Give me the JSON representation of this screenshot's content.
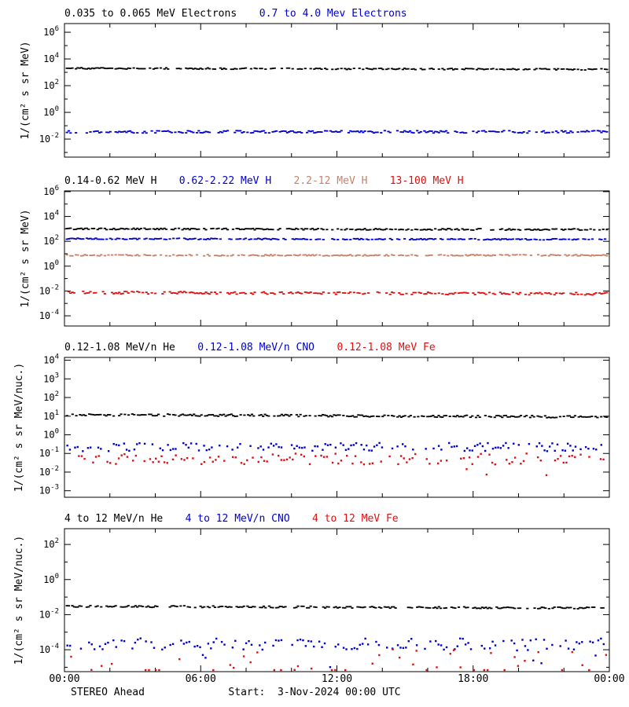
{
  "footer": {
    "left": "STEREO Ahead",
    "center": "Start:  3-Nov-2024 00:00 UTC"
  },
  "x_axis": {
    "range_hours": [
      0,
      24
    ],
    "tick_hours": [
      0,
      6,
      12,
      18,
      24
    ],
    "tick_labels": [
      "00:00",
      "06:00",
      "12:00",
      "18:00",
      "00:00"
    ],
    "minor_tick_step_hours": 2
  },
  "colors": {
    "black": "#000000",
    "blue": "#0000cc",
    "tan": "#c68168",
    "red": "#dd1111",
    "axis": "#000000",
    "background": "#ffffff"
  },
  "chart_data": [
    {
      "type": "scatter",
      "panel": "electrons",
      "titles": [
        {
          "text": "0.035 to 0.065 MeV Electrons",
          "color": "#000000"
        },
        {
          "text": "0.7 to 4.0 Mev Electrons",
          "color": "#0000cc"
        }
      ],
      "ylabel": "1/(cm² s sr MeV)",
      "ylog_range": [
        -3.35,
        6.65
      ],
      "ytick_exponents_labeled": [
        6,
        4,
        2,
        0,
        -2
      ],
      "ytick_labels": [
        "10^6",
        "10^4",
        "10^2",
        "10^0",
        "10^-2"
      ],
      "grid": false,
      "series": [
        {
          "name": "0.035 to 0.065 MeV Electrons",
          "color": "#000000",
          "level": 2000,
          "noise_dex": 0.05,
          "trend_dex": -0.08,
          "marker": "dash",
          "n": 300,
          "drop_fraction": 0.28,
          "seed": 11
        },
        {
          "name": "0.7 to 4.0 Mev Electrons",
          "color": "#0000cc",
          "level": 0.035,
          "noise_dex": 0.09,
          "trend_dex": 0.0,
          "marker": "dash",
          "n": 300,
          "drop_fraction": 0.3,
          "seed": 22
        }
      ]
    },
    {
      "type": "scatter",
      "panel": "protons",
      "titles": [
        {
          "text": "0.14-0.62 MeV H",
          "color": "#000000"
        },
        {
          "text": "0.62-2.22 MeV H",
          "color": "#0000cc"
        },
        {
          "text": "2.2-12 MeV H",
          "color": "#c68168"
        },
        {
          "text": "13-100 MeV H",
          "color": "#dd1111"
        }
      ],
      "ylabel": "1/(cm² s sr MeV)",
      "ylog_range": [
        -4.82,
        6.06
      ],
      "ytick_exponents_labeled": [
        6,
        4,
        2,
        0,
        -2,
        -4
      ],
      "ytick_labels": [
        "10^6",
        "10^4",
        "10^2",
        "10^0",
        "10^-2",
        "10^-4"
      ],
      "grid": false,
      "series": [
        {
          "name": "0.14-0.62 MeV H",
          "color": "#000000",
          "level": 1000,
          "noise_dex": 0.06,
          "trend_dex": -0.05,
          "marker": "dash",
          "n": 300,
          "drop_fraction": 0.28,
          "seed": 33
        },
        {
          "name": "0.62-2.22 MeV H",
          "color": "#0000cc",
          "level": 160,
          "noise_dex": 0.05,
          "trend_dex": -0.05,
          "marker": "dash",
          "n": 300,
          "drop_fraction": 0.3,
          "seed": 44
        },
        {
          "name": "2.2-12 MeV H",
          "color": "#c68168",
          "level": 7.5,
          "noise_dex": 0.05,
          "trend_dex": 0.0,
          "marker": "dash",
          "n": 300,
          "drop_fraction": 0.3,
          "seed": 55
        },
        {
          "name": "13-100 MeV H",
          "color": "#dd1111",
          "level": 0.0075,
          "noise_dex": 0.1,
          "trend_dex": -0.1,
          "marker": "dash",
          "n": 300,
          "drop_fraction": 0.28,
          "seed": 66
        }
      ]
    },
    {
      "type": "scatter",
      "panel": "low-energy-heavy-ions",
      "titles": [
        {
          "text": "0.12-1.08 MeV/n He",
          "color": "#000000"
        },
        {
          "text": "0.12-1.08 MeV/n CNO",
          "color": "#0000cc"
        },
        {
          "text": "0.12-1.08 MeV Fe",
          "color": "#dd1111"
        }
      ],
      "ylabel": "1/(cm² s sr MeV/nuc.)",
      "ylog_range": [
        -3.35,
        4.15
      ],
      "ytick_exponents_labeled": [
        4,
        3,
        2,
        1,
        0,
        -1,
        -2,
        -3
      ],
      "ytick_labels": [
        "10^4",
        "10^3",
        "10^2",
        "10^1",
        "10^0",
        "10^-1",
        "10^-2",
        "10^-3"
      ],
      "grid": false,
      "series": [
        {
          "name": "0.12-1.08 MeV/n He",
          "color": "#000000",
          "level": 12,
          "noise_dex": 0.06,
          "trend_dex": -0.12,
          "marker": "dash",
          "n": 290,
          "drop_fraction": 0.25,
          "seed": 77
        },
        {
          "name": "0.12-1.08 MeV/n CNO",
          "color": "#0000cc",
          "level": 0.22,
          "noise_dex": 0.22,
          "trend_dex": 0.0,
          "marker": "dot",
          "n": 210,
          "drop_fraction": 0.3,
          "seed": 88
        },
        {
          "name": "0.12-1.08 MeV Fe",
          "color": "#dd1111",
          "level": 0.05,
          "noise_dex": 0.3,
          "trend_dex": 0.0,
          "marker": "dot",
          "n": 190,
          "drop_fraction": 0.4,
          "outlier_fraction": 0.04,
          "outlier_dex": 1.2,
          "seed": 99
        }
      ]
    },
    {
      "type": "scatter",
      "panel": "high-energy-heavy-ions",
      "titles": [
        {
          "text": "4 to 12 MeV/n He",
          "color": "#000000"
        },
        {
          "text": "4 to 12 MeV/n CNO",
          "color": "#0000cc"
        },
        {
          "text": "4 to 12 MeV Fe",
          "color": "#dd1111"
        }
      ],
      "ylabel": "1/(cm² s sr MeV/nuc.)",
      "ylog_range": [
        -5.25,
        2.9
      ],
      "ytick_exponents_labeled": [
        2,
        0,
        -2,
        -4
      ],
      "ytick_labels": [
        "10^2",
        "10^0",
        "10^-2",
        "10^-4"
      ],
      "grid": false,
      "series": [
        {
          "name": "4 to 12 MeV/n He",
          "color": "#000000",
          "level": 0.03,
          "noise_dex": 0.05,
          "trend_dex": -0.1,
          "marker": "dash",
          "n": 300,
          "drop_fraction": 0.28,
          "seed": 111
        },
        {
          "name": "4 to 12 MeV/n CNO",
          "color": "#0000cc",
          "level": 0.0002,
          "noise_dex": 0.35,
          "trend_dex": 0.0,
          "marker": "dot",
          "n": 200,
          "drop_fraction": 0.35,
          "outlier_fraction": 0.05,
          "outlier_dex": 1.0,
          "seed": 122
        },
        {
          "name": "4 to 12 MeV Fe",
          "color": "#dd1111",
          "level": 3.5e-05,
          "noise_dex": 0.5,
          "trend_dex": 0.0,
          "marker": "dot",
          "n": 160,
          "drop_fraction": 0.72,
          "outlier_fraction": 0.5,
          "outlier_dex": 1.3,
          "seed": 133
        }
      ]
    }
  ]
}
